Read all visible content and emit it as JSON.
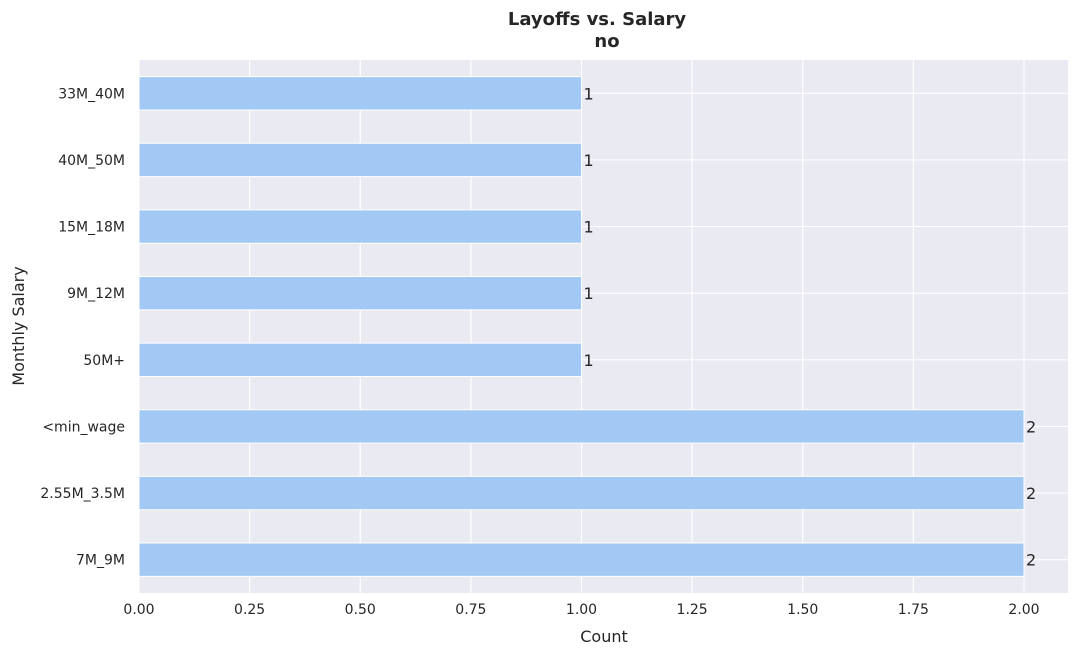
{
  "chart_data": {
    "type": "bar",
    "orientation": "horizontal",
    "title": "Layoffs vs. Salary",
    "subtitle": "no",
    "xlabel": "Count",
    "ylabel": "Monthly Salary",
    "categories": [
      "33M_40M",
      "40M_50M",
      "15M_18M",
      "9M_12M",
      "50M+",
      "<min_wage",
      "2.55M_3.5M",
      "7M_9M"
    ],
    "values": [
      1,
      1,
      1,
      1,
      1,
      2,
      2,
      2
    ],
    "data_labels": [
      "1",
      "1",
      "1",
      "1",
      "1",
      "2",
      "2",
      "2"
    ],
    "xlim": [
      0,
      2.1
    ],
    "xticks": [
      0,
      0.25,
      0.5,
      0.75,
      1.0,
      1.25,
      1.5,
      1.75,
      2.0
    ],
    "xtick_labels": [
      "0.00",
      "0.25",
      "0.50",
      "0.75",
      "1.00",
      "1.25",
      "1.50",
      "1.75",
      "2.00"
    ],
    "grid": true,
    "colors": {
      "bar": "#a1c9f4",
      "plot_background": "#eaeaf2",
      "grid": "#ffffff",
      "text": "#262626"
    }
  }
}
